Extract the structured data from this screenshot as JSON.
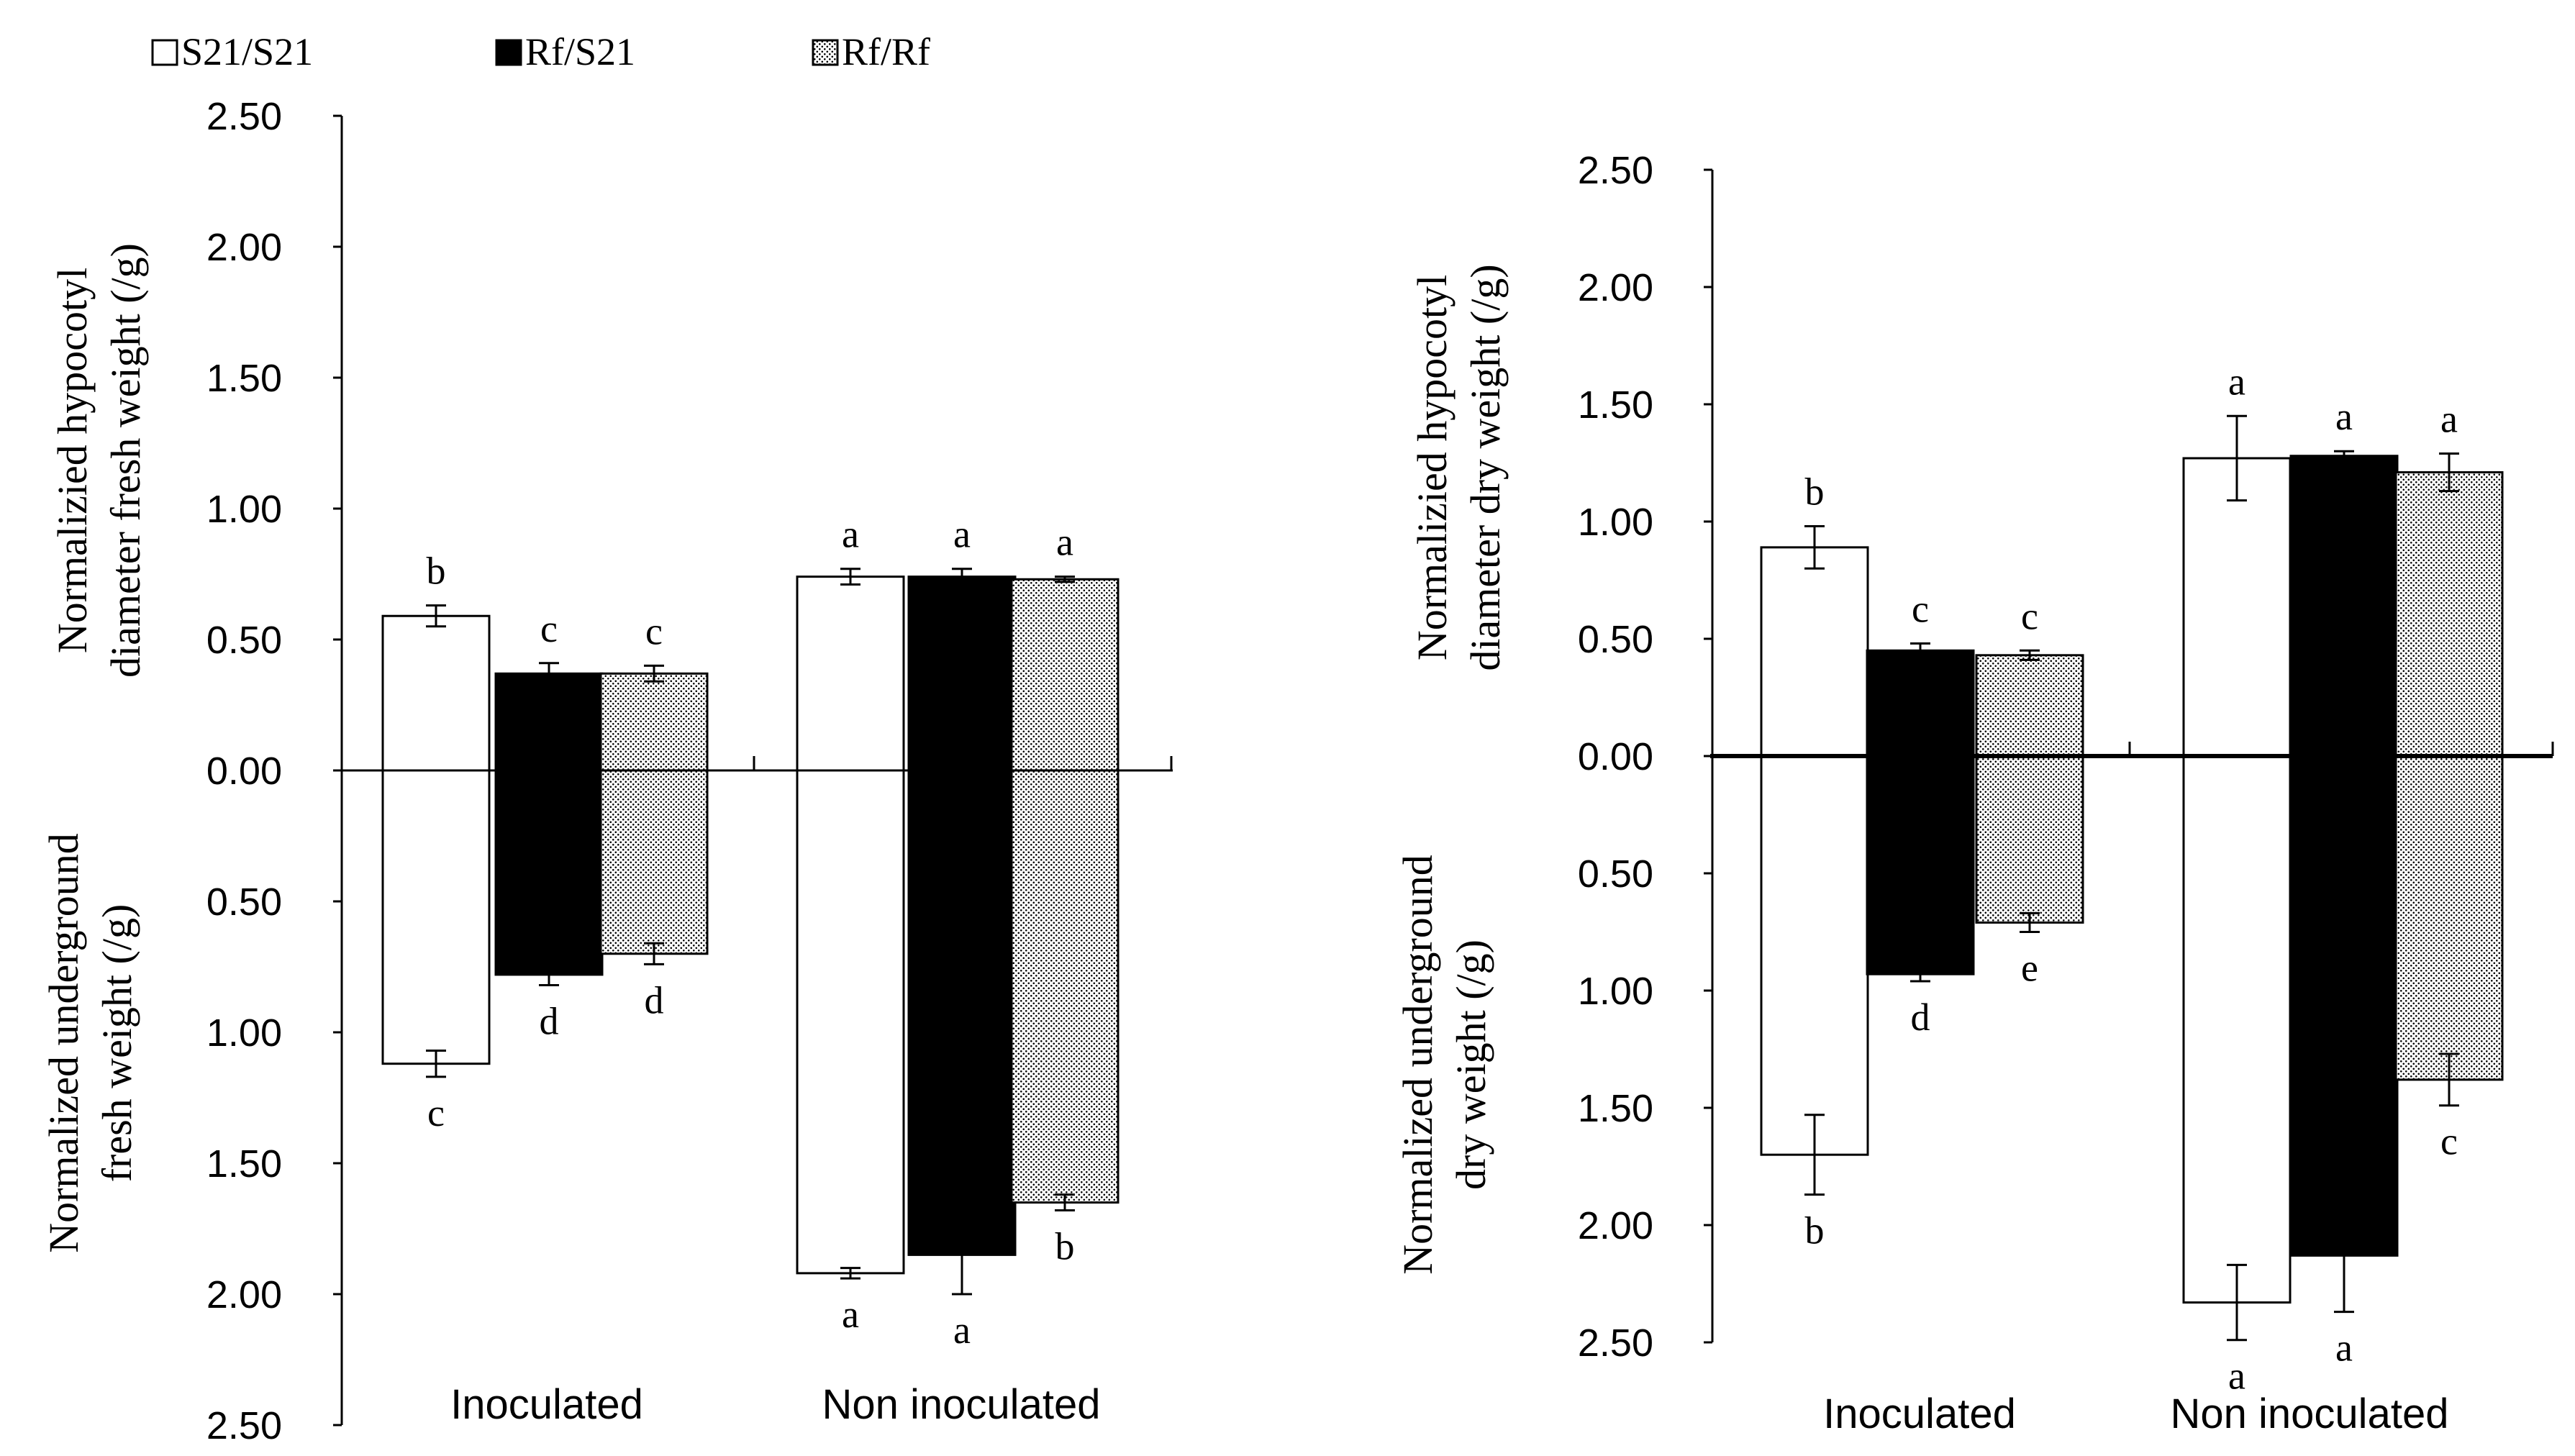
{
  "legend": {
    "items": [
      {
        "label": "S21/S21",
        "fill": "white"
      },
      {
        "label": "Rf/S21",
        "fill": "black"
      },
      {
        "label": "Rf/Rf",
        "fill": "dots"
      }
    ]
  },
  "chart_data": [
    {
      "type": "bar",
      "title": "",
      "groups": [
        "Inoculated",
        "Non inoculated"
      ],
      "ylabel_top": "Normalizied hypocotyl diameter fresh weight (/g)",
      "ylabel_top_lines": [
        "Normalizied hypocotyl",
        "diameter fresh weight (/g)"
      ],
      "ylabel_bottom": "Normalized underground fresh weight (/g)",
      "ylabel_bottom_lines": [
        "Normalized underground",
        "fresh weight (/g)"
      ],
      "ylim_top": [
        0,
        2.5
      ],
      "ylim_bottom": [
        0,
        2.5
      ],
      "ticks": [
        2.5,
        2.0,
        1.5,
        1.0,
        0.5,
        0.0,
        0.5,
        1.0,
        1.5,
        2.0,
        2.5
      ],
      "tick_labels": [
        "2.50",
        "2.00",
        "1.50",
        "1.00",
        "0.50",
        "0.00",
        "0.50",
        "1.00",
        "1.50",
        "2.00",
        "2.50"
      ],
      "series": [
        {
          "name": "S21/S21",
          "top": [
            0.59,
            0.74
          ],
          "top_err": [
            0.04,
            0.03
          ],
          "top_letters": [
            "b",
            "a"
          ],
          "bottom": [
            1.12,
            1.92
          ],
          "bottom_err": [
            0.05,
            0.02
          ],
          "bottom_letters": [
            "c",
            "a"
          ]
        },
        {
          "name": "Rf/S21",
          "top": [
            0.37,
            0.74
          ],
          "top_err": [
            0.04,
            0.03
          ],
          "top_letters": [
            "c",
            "a"
          ],
          "bottom": [
            0.78,
            1.85
          ],
          "bottom_err": [
            0.04,
            0.15
          ],
          "bottom_letters": [
            "d",
            "a"
          ]
        },
        {
          "name": "Rf/Rf",
          "top": [
            0.37,
            0.73
          ],
          "top_err": [
            0.03,
            0.01
          ],
          "top_letters": [
            "c",
            "a"
          ],
          "bottom": [
            0.7,
            1.65
          ],
          "bottom_err": [
            0.04,
            0.03
          ],
          "bottom_letters": [
            "d",
            "b"
          ]
        }
      ]
    },
    {
      "type": "bar",
      "title": "",
      "groups": [
        "Inoculated",
        "Non inoculated"
      ],
      "ylabel_top": "Normalizied hypocotyl diameter dry weight (/g)",
      "ylabel_top_lines": [
        "Normalizied hypocotyl",
        "diameter dry weight (/g)"
      ],
      "ylabel_bottom": "Normalized underground dry weight (/g)",
      "ylabel_bottom_lines": [
        "Normalized underground",
        "dry weight (/g)"
      ],
      "ylim_top": [
        0,
        2.5
      ],
      "ylim_bottom": [
        0,
        2.5
      ],
      "ticks": [
        2.5,
        2.0,
        1.5,
        1.0,
        0.5,
        0.0,
        0.5,
        1.0,
        1.5,
        2.0,
        2.5
      ],
      "tick_labels": [
        "2.50",
        "2.00",
        "1.50",
        "1.00",
        "0.50",
        "0.00",
        "0.50",
        "1.00",
        "1.50",
        "2.00",
        "2.50"
      ],
      "series": [
        {
          "name": "S21/S21",
          "top": [
            0.89,
            1.27
          ],
          "top_err": [
            0.09,
            0.18
          ],
          "top_letters": [
            "b",
            "a"
          ],
          "bottom": [
            1.7,
            2.33
          ],
          "bottom_err": [
            0.17,
            0.16
          ],
          "bottom_letters": [
            "b",
            "a"
          ]
        },
        {
          "name": "Rf/S21",
          "top": [
            0.45,
            1.28
          ],
          "top_err": [
            0.03,
            0.02
          ],
          "top_letters": [
            "c",
            "a"
          ],
          "bottom": [
            0.93,
            2.13
          ],
          "bottom_err": [
            0.03,
            0.24
          ],
          "bottom_letters": [
            "d",
            "a"
          ]
        },
        {
          "name": "Rf/Rf",
          "top": [
            0.43,
            1.21
          ],
          "top_err": [
            0.02,
            0.08
          ],
          "top_letters": [
            "c",
            "a"
          ],
          "bottom": [
            0.71,
            1.38
          ],
          "bottom_err": [
            0.04,
            0.11
          ],
          "bottom_letters": [
            "e",
            "c"
          ]
        }
      ]
    }
  ]
}
